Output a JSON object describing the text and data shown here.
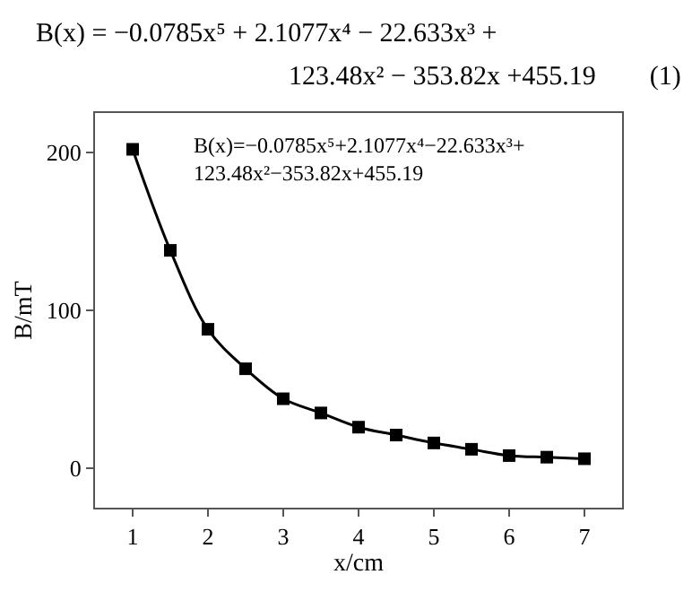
{
  "chart_data": {
    "type": "line",
    "title": "B(x) = −0.0785x⁵ + 2.1077x⁴ − 22.633x³ +",
    "subtitle": "123.48x² − 353.82x +455.19        (1)",
    "xlabel": "x/cm",
    "ylabel": "B/mT",
    "annotations": [
      "B(x)=−0.0785x⁵+2.1077x⁴−22.633x³+\n123.48x²−353.82x+455.19"
    ],
    "x": [
      1,
      1.5,
      2,
      2.5,
      3,
      3.5,
      4,
      4.5,
      5,
      5.5,
      6,
      6.5,
      7
    ],
    "series": [
      {
        "color": "#000000",
        "values": [
          202,
          138,
          88,
          63,
          44,
          35,
          26,
          21,
          16,
          12,
          8,
          7,
          6
        ]
      }
    ],
    "marker": "square",
    "line_style": "solid",
    "xlim": [
      0.5,
      7.5
    ],
    "xticks": [
      1,
      2,
      3,
      4,
      5,
      6,
      7
    ],
    "ylim": [
      -25,
      225
    ],
    "yticks": [
      0,
      100,
      200
    ]
  }
}
